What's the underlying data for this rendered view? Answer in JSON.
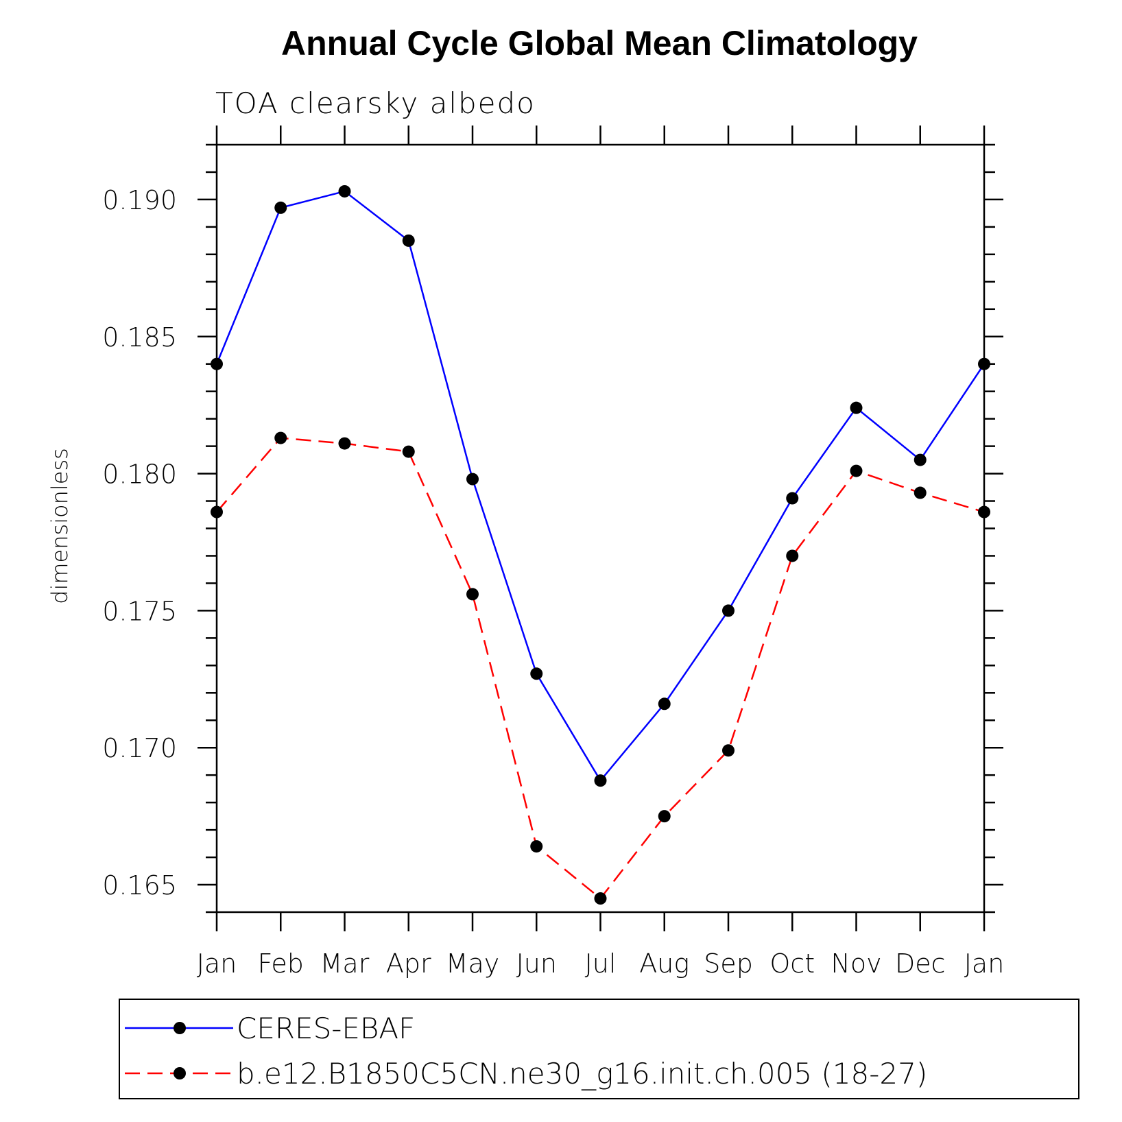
{
  "chart_data": {
    "type": "line",
    "title": "Annual Cycle Global Mean Climatology",
    "subtitle": "TOA clearsky albedo",
    "xlabel": "",
    "ylabel": "dimensionless",
    "categories": [
      "Jan",
      "Feb",
      "Mar",
      "Apr",
      "May",
      "Jun",
      "Jul",
      "Aug",
      "Sep",
      "Oct",
      "Nov",
      "Dec",
      "Jan"
    ],
    "ylim": [
      0.164,
      0.192
    ],
    "yticks": [
      0.165,
      0.17,
      0.175,
      0.18,
      0.185,
      0.19
    ],
    "ytick_labels": [
      "0.165",
      "0.170",
      "0.175",
      "0.180",
      "0.185",
      "0.190"
    ],
    "series": [
      {
        "name": "CERES-EBAF",
        "color": "#0000ff",
        "dash": "solid",
        "values": [
          0.184,
          0.1897,
          0.1903,
          0.1885,
          0.1798,
          0.1727,
          0.1688,
          0.1716,
          0.175,
          0.1791,
          0.1824,
          0.1805,
          0.184
        ]
      },
      {
        "name": "b.e12.B1850C5CN.ne30_g16.init.ch.005 (18-27)",
        "color": "#ff0000",
        "dash": "dashed",
        "values": [
          0.1786,
          0.1813,
          0.1811,
          0.1808,
          0.1756,
          0.1664,
          0.1645,
          0.1675,
          0.1699,
          0.177,
          0.1801,
          0.1793,
          0.1786
        ]
      }
    ],
    "legend_position": "bottom"
  }
}
